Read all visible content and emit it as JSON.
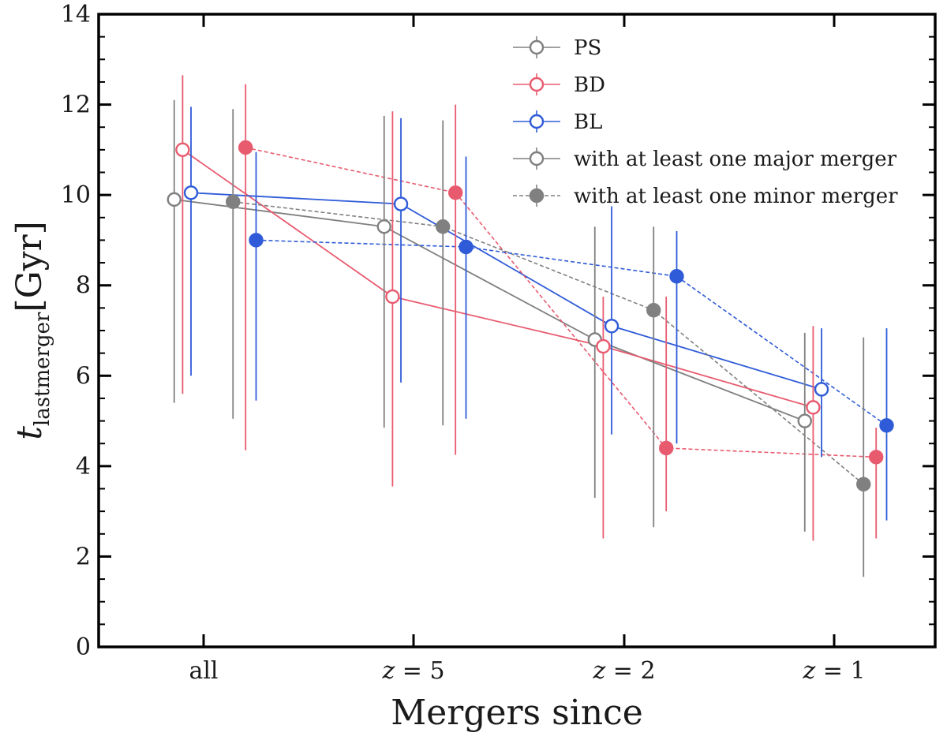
{
  "chart_data": {
    "type": "scatter",
    "xlabel": "Mergers since",
    "ylabel": {
      "main": "t",
      "sub": "lastmerger",
      "unit": "[Gyr]"
    },
    "ylim": [
      0,
      14
    ],
    "yticks": [
      "0",
      "2",
      "4",
      "6",
      "8",
      "10",
      "12",
      "14"
    ],
    "categories": [
      "all",
      "z = 5",
      "z = 2",
      "z = 1"
    ],
    "grid": false,
    "legend_position": "top-right",
    "legend": [
      {
        "label": "PS",
        "color": "#808080",
        "marker": "open",
        "line": "solid"
      },
      {
        "label": "BD",
        "color": "#e85b6f",
        "marker": "open",
        "line": "solid"
      },
      {
        "label": "BL",
        "color": "#2f5bd8",
        "marker": "open",
        "line": "solid"
      },
      {
        "label": "with at least one major merger",
        "color": "#808080",
        "marker": "open",
        "line": "solid"
      },
      {
        "label": "with at least one minor merger",
        "color": "#808080",
        "marker": "filled",
        "line": "dashed"
      }
    ],
    "series": [
      {
        "name": "PS",
        "merger": "major",
        "color": "#808080",
        "filled": false,
        "dashed": false,
        "offset": -0.14,
        "values": [
          9.9,
          9.3,
          6.8,
          5.0
        ],
        "err_low": [
          5.4,
          4.85,
          3.3,
          2.55
        ],
        "err_high": [
          12.1,
          11.75,
          9.3,
          6.95
        ]
      },
      {
        "name": "BD",
        "merger": "major",
        "color": "#e85b6f",
        "filled": false,
        "dashed": false,
        "offset": -0.1,
        "values": [
          11.0,
          7.75,
          6.65,
          5.3
        ],
        "err_low": [
          5.6,
          3.55,
          2.4,
          2.35
        ],
        "err_high": [
          12.65,
          11.85,
          7.75,
          7.1
        ]
      },
      {
        "name": "BL",
        "merger": "major",
        "color": "#2f5bd8",
        "filled": false,
        "dashed": false,
        "offset": -0.06,
        "values": [
          10.05,
          9.8,
          7.1,
          5.7
        ],
        "err_low": [
          6.0,
          5.85,
          4.7,
          4.2
        ],
        "err_high": [
          11.95,
          11.7,
          9.75,
          7.05
        ]
      },
      {
        "name": "PS",
        "merger": "minor",
        "color": "#808080",
        "filled": true,
        "dashed": true,
        "offset": 0.14,
        "values": [
          9.85,
          9.3,
          7.45,
          3.6
        ],
        "err_low": [
          5.05,
          4.9,
          2.65,
          1.55
        ],
        "err_high": [
          11.9,
          11.65,
          9.3,
          6.85
        ]
      },
      {
        "name": "BD",
        "merger": "minor",
        "color": "#e85b6f",
        "filled": true,
        "dashed": true,
        "offset": 0.2,
        "values": [
          11.05,
          10.05,
          4.4,
          4.2
        ],
        "err_low": [
          4.35,
          4.25,
          3.0,
          2.4
        ],
        "err_high": [
          12.45,
          12.0,
          7.75,
          4.85
        ]
      },
      {
        "name": "BL",
        "merger": "minor",
        "color": "#2f5bd8",
        "filled": true,
        "dashed": true,
        "offset": 0.25,
        "values": [
          9.0,
          8.85,
          8.2,
          4.9
        ],
        "err_low": [
          5.45,
          5.05,
          4.5,
          2.8
        ],
        "err_high": [
          10.95,
          10.85,
          9.2,
          7.05
        ]
      }
    ]
  }
}
